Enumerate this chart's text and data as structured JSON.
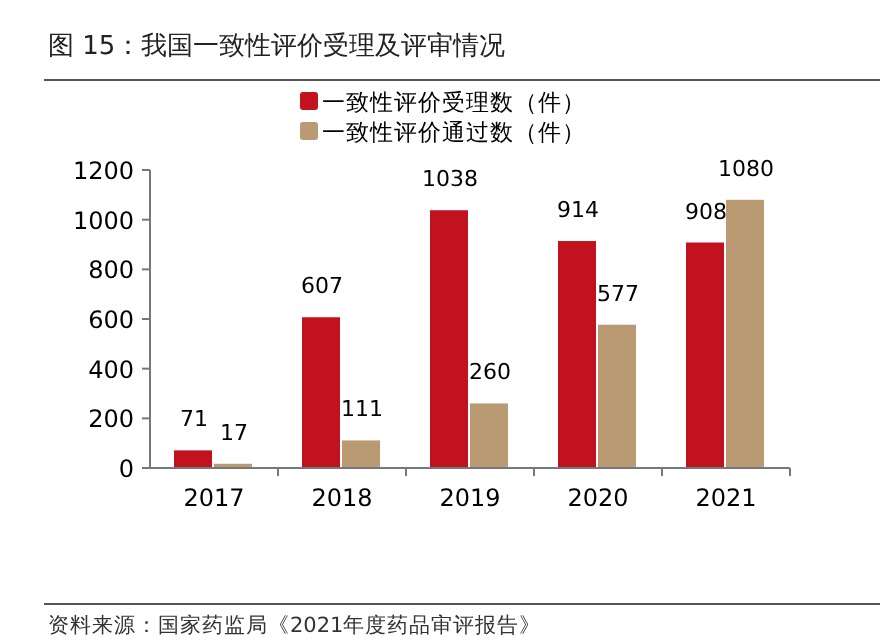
{
  "chart_data": {
    "type": "bar",
    "title": "图 15：我国一致性评价受理及评审情况",
    "categories": [
      "2017",
      "2018",
      "2019",
      "2020",
      "2021"
    ],
    "series": [
      {
        "name": "一致性评价受理数（件）",
        "color": "#c2121f",
        "values": [
          71,
          607,
          1038,
          914,
          908
        ]
      },
      {
        "name": "一致性评价通过数（件）",
        "color": "#b99a73",
        "values": [
          17,
          111,
          260,
          577,
          1080
        ]
      }
    ],
    "ylim": [
      0,
      1200
    ],
    "yticks": [
      0,
      200,
      400,
      600,
      800,
      1000,
      1200
    ],
    "data_labels": true,
    "legend": "top",
    "grid": false,
    "annotations": [
      "资料来源：国家药监局《2021年度药品审评报告》"
    ]
  }
}
